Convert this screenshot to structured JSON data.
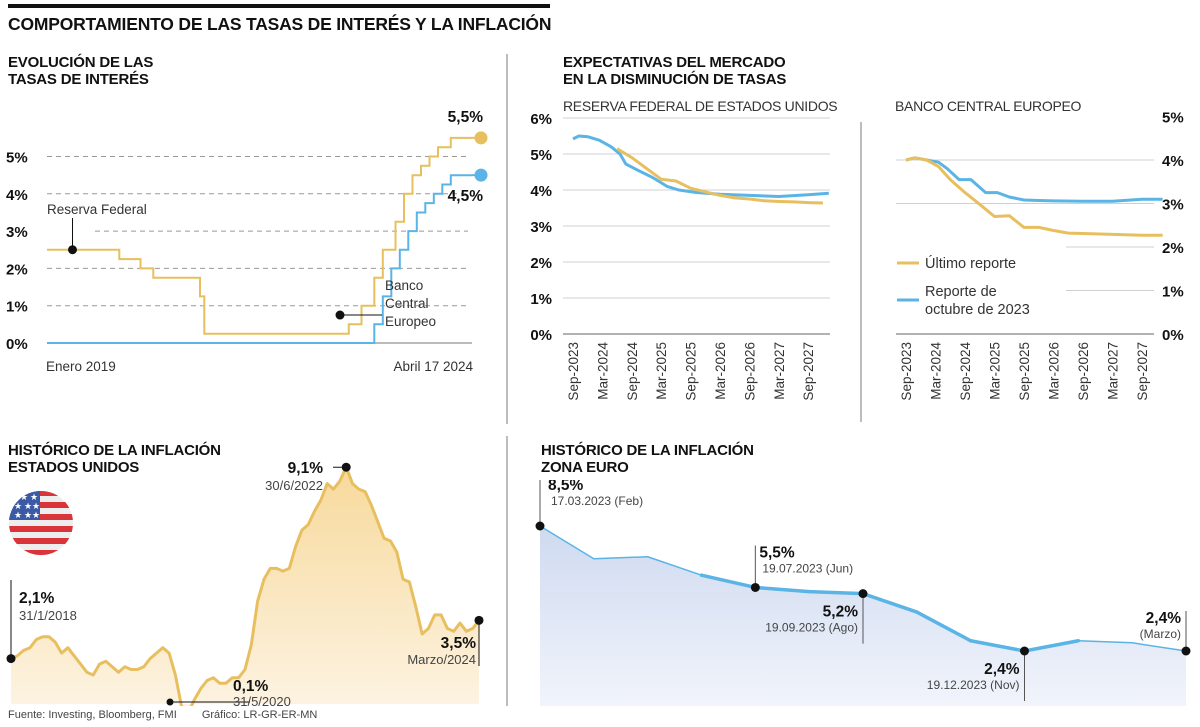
{
  "main_title": "COMPORTAMIENTO DE LAS TASAS DE INTERÉS Y LA INFLACIÓN",
  "colors": {
    "fed": "#e8bf5f",
    "ecb": "#5ab4e5",
    "us_fill": "#fbe6be",
    "eu_fill": "#dfe7f5",
    "grid": "#999999"
  },
  "footer": {
    "source": "Fuente: Investing, Bloomberg, FMI",
    "credit": "Gráfico: LR-GR-ER-MN"
  },
  "chart_data": [
    {
      "id": "tasas",
      "type": "line",
      "title_lines": [
        "EVOLUCIÓN DE LAS",
        "TASAS DE INTERÉS"
      ],
      "xlabel_start": "Enero 2019",
      "xlabel_end": "Abril 17 2024",
      "yticks": [
        "0%",
        "1%",
        "2%",
        "3%",
        "4%",
        "5%"
      ],
      "ylim": [
        0,
        5.5
      ],
      "grid": "dashed",
      "xlim": [
        0,
        100
      ],
      "series": [
        {
          "name": "Reserva Federal",
          "color": "#e8bf5f",
          "end_label": "5,5%",
          "step_points": [
            [
              0,
              2.5
            ],
            [
              17,
              2.5
            ],
            [
              17,
              2.25
            ],
            [
              22,
              2.25
            ],
            [
              22,
              2.0
            ],
            [
              25,
              2.0
            ],
            [
              25,
              1.75
            ],
            [
              36,
              1.75
            ],
            [
              36,
              1.25
            ],
            [
              37,
              1.25
            ],
            [
              37,
              0.25
            ],
            [
              71,
              0.25
            ],
            [
              71,
              0.5
            ],
            [
              74,
              0.5
            ],
            [
              74,
              1.0
            ],
            [
              77,
              1.0
            ],
            [
              77,
              1.75
            ],
            [
              79,
              1.75
            ],
            [
              79,
              2.5
            ],
            [
              82,
              2.5
            ],
            [
              82,
              3.25
            ],
            [
              84,
              3.25
            ],
            [
              84,
              4.0
            ],
            [
              86,
              4.0
            ],
            [
              86,
              4.5
            ],
            [
              88,
              4.5
            ],
            [
              88,
              4.75
            ],
            [
              90,
              4.75
            ],
            [
              90,
              5.0
            ],
            [
              92,
              5.0
            ],
            [
              92,
              5.25
            ],
            [
              95,
              5.25
            ],
            [
              95,
              5.5
            ],
            [
              100,
              5.5
            ]
          ]
        },
        {
          "name": "Banco Central Europeo",
          "name_lines": [
            "Banco",
            "Central",
            "Europeo"
          ],
          "color": "#5ab4e5",
          "end_label": "4,5%",
          "step_points": [
            [
              0,
              0
            ],
            [
              77,
              0
            ],
            [
              77,
              0.5
            ],
            [
              79,
              0.5
            ],
            [
              79,
              1.25
            ],
            [
              81,
              1.25
            ],
            [
              81,
              2.0
            ],
            [
              83,
              2.0
            ],
            [
              83,
              2.5
            ],
            [
              85,
              2.5
            ],
            [
              85,
              3.0
            ],
            [
              87,
              3.0
            ],
            [
              87,
              3.5
            ],
            [
              89,
              3.5
            ],
            [
              89,
              3.75
            ],
            [
              91,
              3.75
            ],
            [
              91,
              4.0
            ],
            [
              93,
              4.0
            ],
            [
              93,
              4.25
            ],
            [
              95,
              4.25
            ],
            [
              95,
              4.5
            ],
            [
              100,
              4.5
            ]
          ]
        }
      ]
    },
    {
      "id": "fed_expect",
      "type": "line",
      "title_lines": [
        "EXPECTATIVAS DEL MERCADO",
        "EN LA DISMINUCIÓN DE TASAS"
      ],
      "subtitle": "RESERVA FEDERAL DE ESTADOS UNIDOS",
      "categories": [
        "Sep-2023",
        "Mar-2024",
        "Sep-2024",
        "Mar-2025",
        "Sep-2025",
        "Mar-2026",
        "Sep-2026",
        "Mar-2027",
        "Sep-2027"
      ],
      "yticks": [
        "0%",
        "1%",
        "2%",
        "3%",
        "4%",
        "5%",
        "6%"
      ],
      "ylim": [
        0,
        6
      ],
      "grid": "solid",
      "series": [
        {
          "name": "Último reporte",
          "color": "#e8bf5f",
          "x": [
            1.5,
            2.0,
            2.5,
            3.0,
            3.5,
            4.0,
            4.5,
            5.0,
            5.5,
            6.0,
            6.5,
            7.0,
            7.5,
            8.0,
            8.5
          ],
          "values": [
            5.15,
            4.9,
            4.6,
            4.3,
            4.25,
            4.05,
            3.95,
            3.85,
            3.78,
            3.75,
            3.7,
            3.68,
            3.67,
            3.65,
            3.64
          ]
        },
        {
          "name": "Reporte de octubre de 2023",
          "color": "#5ab4e5",
          "x": [
            0,
            0.2,
            0.5,
            0.9,
            1.3,
            1.6,
            1.8,
            2.2,
            2.7,
            3.2,
            3.6,
            4.2,
            5.0,
            6.0,
            7.0,
            8.0,
            8.7
          ],
          "values": [
            5.42,
            5.5,
            5.48,
            5.38,
            5.2,
            5.0,
            4.72,
            4.55,
            4.35,
            4.1,
            4.0,
            3.93,
            3.88,
            3.85,
            3.82,
            3.87,
            3.91
          ]
        }
      ]
    },
    {
      "id": "ecb_expect",
      "type": "line",
      "subtitle": "BANCO CENTRAL EUROPEO",
      "categories": [
        "Sep-2023",
        "Mar-2024",
        "Sep-2024",
        "Mar-2025",
        "Sep-2025",
        "Mar-2026",
        "Sep-2026",
        "Mar-2027",
        "Sep-2027"
      ],
      "yticks": [
        "0%",
        "1%",
        "2%",
        "3%",
        "4%",
        "5%"
      ],
      "ylim": [
        0,
        5
      ],
      "grid": "solid",
      "legend": "left-middle",
      "series": [
        {
          "name": "Último reporte",
          "color": "#e8bf5f",
          "x": [
            0,
            0.3,
            0.7,
            1.1,
            1.5,
            2.0,
            2.5,
            3.0,
            3.5,
            4.0,
            4.5,
            5.0,
            5.5,
            6.0,
            7.0,
            8.0,
            8.7
          ],
          "values": [
            4.0,
            4.05,
            4.0,
            3.85,
            3.55,
            3.25,
            2.98,
            2.7,
            2.72,
            2.45,
            2.45,
            2.38,
            2.32,
            2.31,
            2.29,
            2.27,
            2.27
          ]
        },
        {
          "name": "Reporte de octubre de 2023",
          "color": "#5ab4e5",
          "x": [
            0,
            0.3,
            0.7,
            1.1,
            1.4,
            1.8,
            2.2,
            2.7,
            3.1,
            3.5,
            4.0,
            4.5,
            5.0,
            6.0,
            7.0,
            8.0,
            8.7
          ],
          "values": [
            4.0,
            4.05,
            4.0,
            3.95,
            3.8,
            3.55,
            3.55,
            3.25,
            3.25,
            3.15,
            3.08,
            3.07,
            3.06,
            3.05,
            3.05,
            3.1,
            3.1
          ]
        }
      ]
    },
    {
      "id": "us_inflation",
      "type": "area",
      "title_lines": [
        "HISTÓRICO DE LA INFLACIÓN",
        "ESTADOS UNIDOS"
      ],
      "flag_icon": "us-flag-icon",
      "ylim": [
        0,
        9.5
      ],
      "x_start": "2018-01",
      "x_end": "2024-03",
      "values": [
        2.1,
        2.2,
        2.4,
        2.5,
        2.8,
        2.9,
        2.9,
        2.7,
        2.3,
        2.5,
        2.2,
        1.9,
        1.6,
        1.5,
        1.9,
        2.0,
        1.8,
        1.6,
        1.8,
        1.7,
        1.7,
        1.8,
        2.1,
        2.3,
        2.5,
        2.3,
        1.5,
        0.3,
        0.1,
        0.6,
        1.0,
        1.3,
        1.4,
        1.2,
        1.2,
        1.4,
        1.4,
        1.7,
        2.6,
        4.2,
        5.0,
        5.4,
        5.4,
        5.3,
        5.4,
        6.2,
        6.8,
        7.0,
        7.5,
        7.9,
        8.5,
        8.3,
        8.6,
        9.1,
        8.5,
        8.3,
        8.2,
        7.7,
        7.1,
        6.5,
        6.4,
        6.0,
        5.0,
        4.9,
        4.0,
        3.0,
        3.2,
        3.7,
        3.7,
        3.2,
        3.1,
        3.4,
        3.1,
        3.2,
        3.5
      ],
      "annotations": [
        {
          "value": "2,1%",
          "date": "31/1/2018"
        },
        {
          "value": "0,1%",
          "date": "31/5/2020"
        },
        {
          "value": "9,1%",
          "date": "30/6/2022"
        },
        {
          "value": "3,5%",
          "date": "Marzo/2024"
        }
      ]
    },
    {
      "id": "eu_inflation",
      "type": "area",
      "title_lines": [
        "HISTÓRICO DE LA INFLACIÓN",
        "ZONA EURO"
      ],
      "ylim": [
        0,
        10
      ],
      "values": [
        8.5,
        6.9,
        7.0,
        6.1,
        5.5,
        5.3,
        5.2,
        4.3,
        2.9,
        2.4,
        2.9,
        2.8,
        2.4
      ],
      "annotations": [
        {
          "index": 0,
          "value": "8,5%",
          "date": "17.03.2023 (Feb)"
        },
        {
          "index": 4,
          "value": "5,5%",
          "date": "19.07.2023 (Jun)"
        },
        {
          "index": 6,
          "value": "5,2%",
          "date": "19.09.2023 (Ago)"
        },
        {
          "index": 9,
          "value": "2,4%",
          "date": "19.12.2023 (Nov)"
        },
        {
          "index": 12,
          "value": "2,4%",
          "date": "(Marzo)"
        }
      ]
    }
  ]
}
